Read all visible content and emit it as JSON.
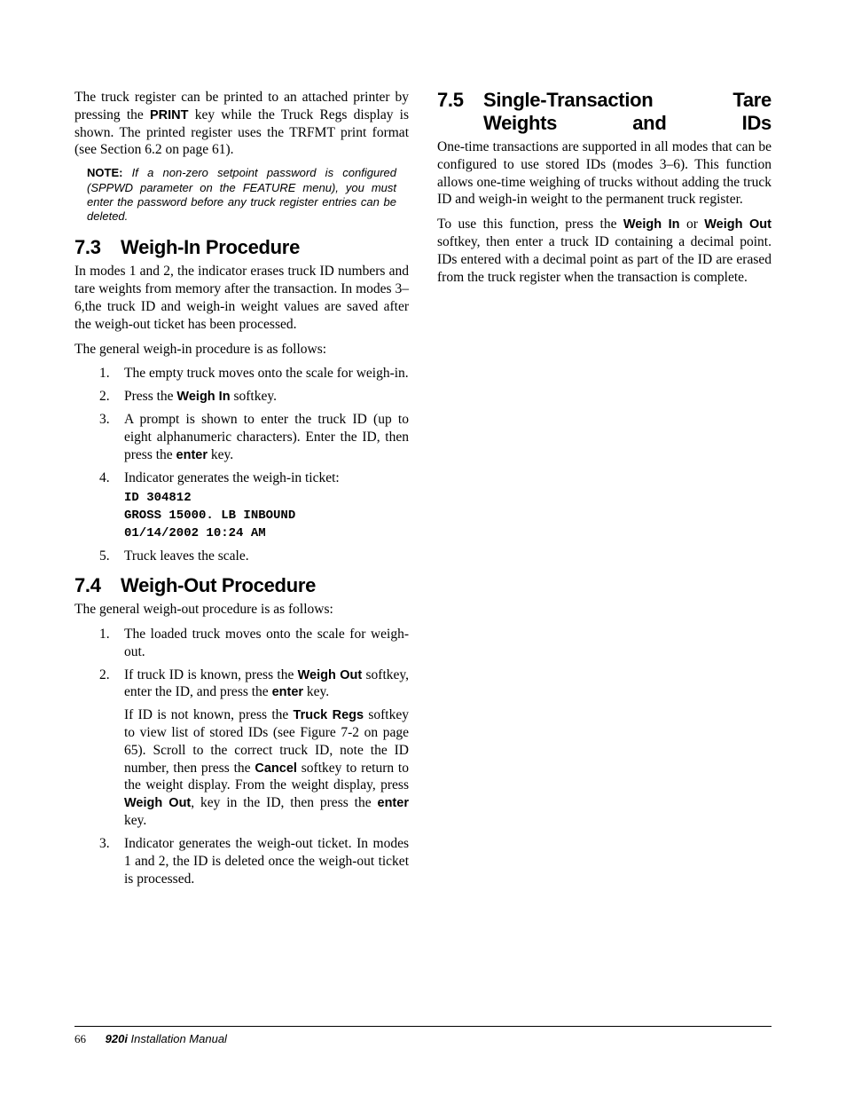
{
  "colors": {
    "text": "#000000",
    "background": "#ffffff",
    "rule": "#000000"
  },
  "typography": {
    "body_family": "Georgia, 'Times New Roman', serif",
    "body_size_pt": 12,
    "heading_family": "'Arial Narrow', Arial, sans-serif",
    "heading_size_pt": 17,
    "key_family": "Arial, Helvetica, sans-serif",
    "ticket_family": "'Courier New', monospace",
    "note_family": "Arial, Helvetica, sans-serif",
    "note_size_pt": 10
  },
  "left": {
    "intro": {
      "pre": "The truck register can be printed to an attached printer by pressing the ",
      "key": "PRINT",
      "post": " key while the Truck Regs display is shown. The printed register uses the TRFMT print format (see Section 6.2 on page 61)."
    },
    "note": {
      "label": "NOTE:",
      "text": " If a non-zero setpoint password is configured (SPPWD parameter on the FEATURE menu), you must enter the password before any truck register entries can be deleted."
    },
    "s73": {
      "num": "7.3",
      "title": "Weigh-In Procedure",
      "p1": "In modes 1 and 2, the indicator erases truck ID numbers and tare weights from memory after the transaction. In modes 3–6,the truck ID and weigh-in weight values are saved after the weigh-out ticket has been processed.",
      "p2": "The general weigh-in procedure is as follows:",
      "step1": "The empty truck moves onto the scale for weigh-in.",
      "step2_pre": "Press the ",
      "step2_key": "Weigh In",
      "step2_post": " softkey.",
      "step3_pre": "A prompt is shown to enter the truck ID (up to eight alphanumeric characters). Enter the ID, then press the ",
      "step3_key": "enter",
      "step3_post": " key.",
      "step4": "Indicator generates the weigh-in ticket:",
      "ticket": "ID 304812\nGROSS 15000. LB INBOUND\n01/14/2002 10:24 AM",
      "step5": "Truck leaves the scale."
    },
    "s74": {
      "num": "7.4",
      "title": "Weigh-Out Procedure",
      "p1": "The general weigh-out procedure is as follows:",
      "step1": "The loaded truck moves onto the scale for weigh-out.",
      "step2_a_pre": "If truck ID is known, press the ",
      "step2_a_k1": "Weigh Out",
      "step2_a_mid": " softkey, enter the ID, and press the ",
      "step2_a_k2": "enter",
      "step2_a_post": " key.",
      "step2_b_pre": "If ID is not known, press the ",
      "step2_b_k1": "Truck Regs",
      "step2_b_mid1": " softkey to view list of stored IDs (see Figure 7-2 on page 65). Scroll to the correct truck ID, note the ID number, then press the ",
      "step2_b_k2": "Cancel",
      "step2_b_mid2": " softkey to return to the weight display. From the weight display, press ",
      "step2_b_k3": "Weigh Out",
      "step2_b_mid3": ", key in the ID, then press the ",
      "step2_b_k4": "enter",
      "step2_b_post": " key.",
      "step3": "Indicator generates the weigh-out ticket. In modes 1 and 2, the ID is deleted once the weigh-out ticket is processed."
    }
  },
  "right": {
    "s75": {
      "num": "7.5",
      "title": "Single-Transaction Tare Weights and IDs",
      "p1": "One-time transactions are supported in all modes that can be configured to use stored IDs (modes 3–6). This function allows one-time weighing of trucks without adding the truck ID and weigh-in weight to the permanent truck register.",
      "p2_pre": "To use this function, press the ",
      "p2_k1": "Weigh In",
      "p2_mid": " or ",
      "p2_k2": "Weigh Out",
      "p2_post": " softkey, then enter a truck ID containing a decimal point. IDs entered with a decimal point as part of the ID are erased from the truck register when the transaction is complete."
    }
  },
  "footer": {
    "page": "66",
    "model": "920i",
    "doc": " Installation Manual"
  }
}
